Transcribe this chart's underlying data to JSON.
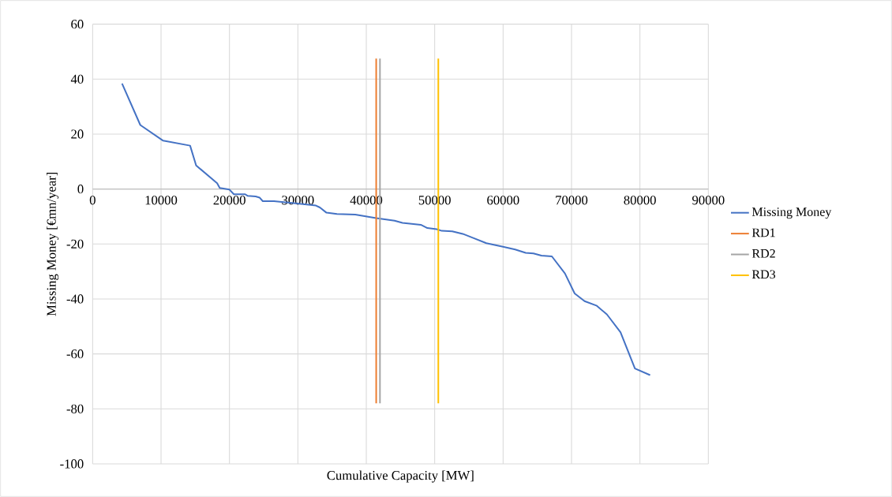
{
  "chart_data": {
    "type": "line",
    "xlabel": "Cumulative Capacity [MW]",
    "ylabel": "Missing Money [€mn/year]",
    "xlim": [
      0,
      90000
    ],
    "xticks": [
      0,
      10000,
      20000,
      30000,
      40000,
      50000,
      60000,
      70000,
      80000,
      90000
    ],
    "ylim": [
      -100,
      60
    ],
    "yticks": [
      -100,
      -80,
      -60,
      -40,
      -20,
      0,
      20,
      40,
      60
    ],
    "grid": true,
    "legend": "right",
    "marker": "none",
    "line_style": "solid",
    "series": [
      {
        "name": "Missing Money",
        "color": "#4472c4",
        "x": [
          4300,
          6970,
          10310,
          14250,
          15130,
          18200,
          18580,
          20000,
          20650,
          22300,
          22680,
          23830,
          24400,
          24870,
          26510,
          29960,
          32640,
          33220,
          34180,
          35710,
          38390,
          41460,
          44140,
          45290,
          47970,
          48930,
          50270,
          51030,
          52570,
          54100,
          55630,
          57550,
          59850,
          61760,
          63300,
          64440,
          65600,
          67130,
          69040,
          70460,
          71910,
          73640,
          75170,
          77160,
          79270,
          81490
        ],
        "values": [
          38.4,
          23.3,
          17.6,
          15.8,
          8.6,
          2.1,
          0.4,
          -0.2,
          -1.9,
          -1.9,
          -2.5,
          -2.7,
          -3.1,
          -4.4,
          -4.4,
          -5.3,
          -6.0,
          -6.7,
          -8.6,
          -9.1,
          -9.3,
          -10.6,
          -11.5,
          -12.3,
          -13,
          -14.2,
          -14.6,
          -15.2,
          -15.4,
          -16.3,
          -17.8,
          -19.7,
          -20.9,
          -22,
          -23.2,
          -23.4,
          -24.2,
          -24.5,
          -30.7,
          -38,
          -40.8,
          -42.4,
          -45.6,
          -52.1,
          -65.3,
          -67.7
        ]
      },
      {
        "name": "RD1",
        "color": "#ed7d31",
        "x": [
          41450,
          41450
        ],
        "values": [
          47.5,
          -78
        ]
      },
      {
        "name": "RD2",
        "color": "#a5a5a5",
        "x": [
          42000,
          42000
        ],
        "values": [
          47.5,
          -78
        ]
      },
      {
        "name": "RD3",
        "color": "#ffc000",
        "x": [
          50530,
          50530
        ],
        "values": [
          47.5,
          -78
        ]
      }
    ]
  }
}
